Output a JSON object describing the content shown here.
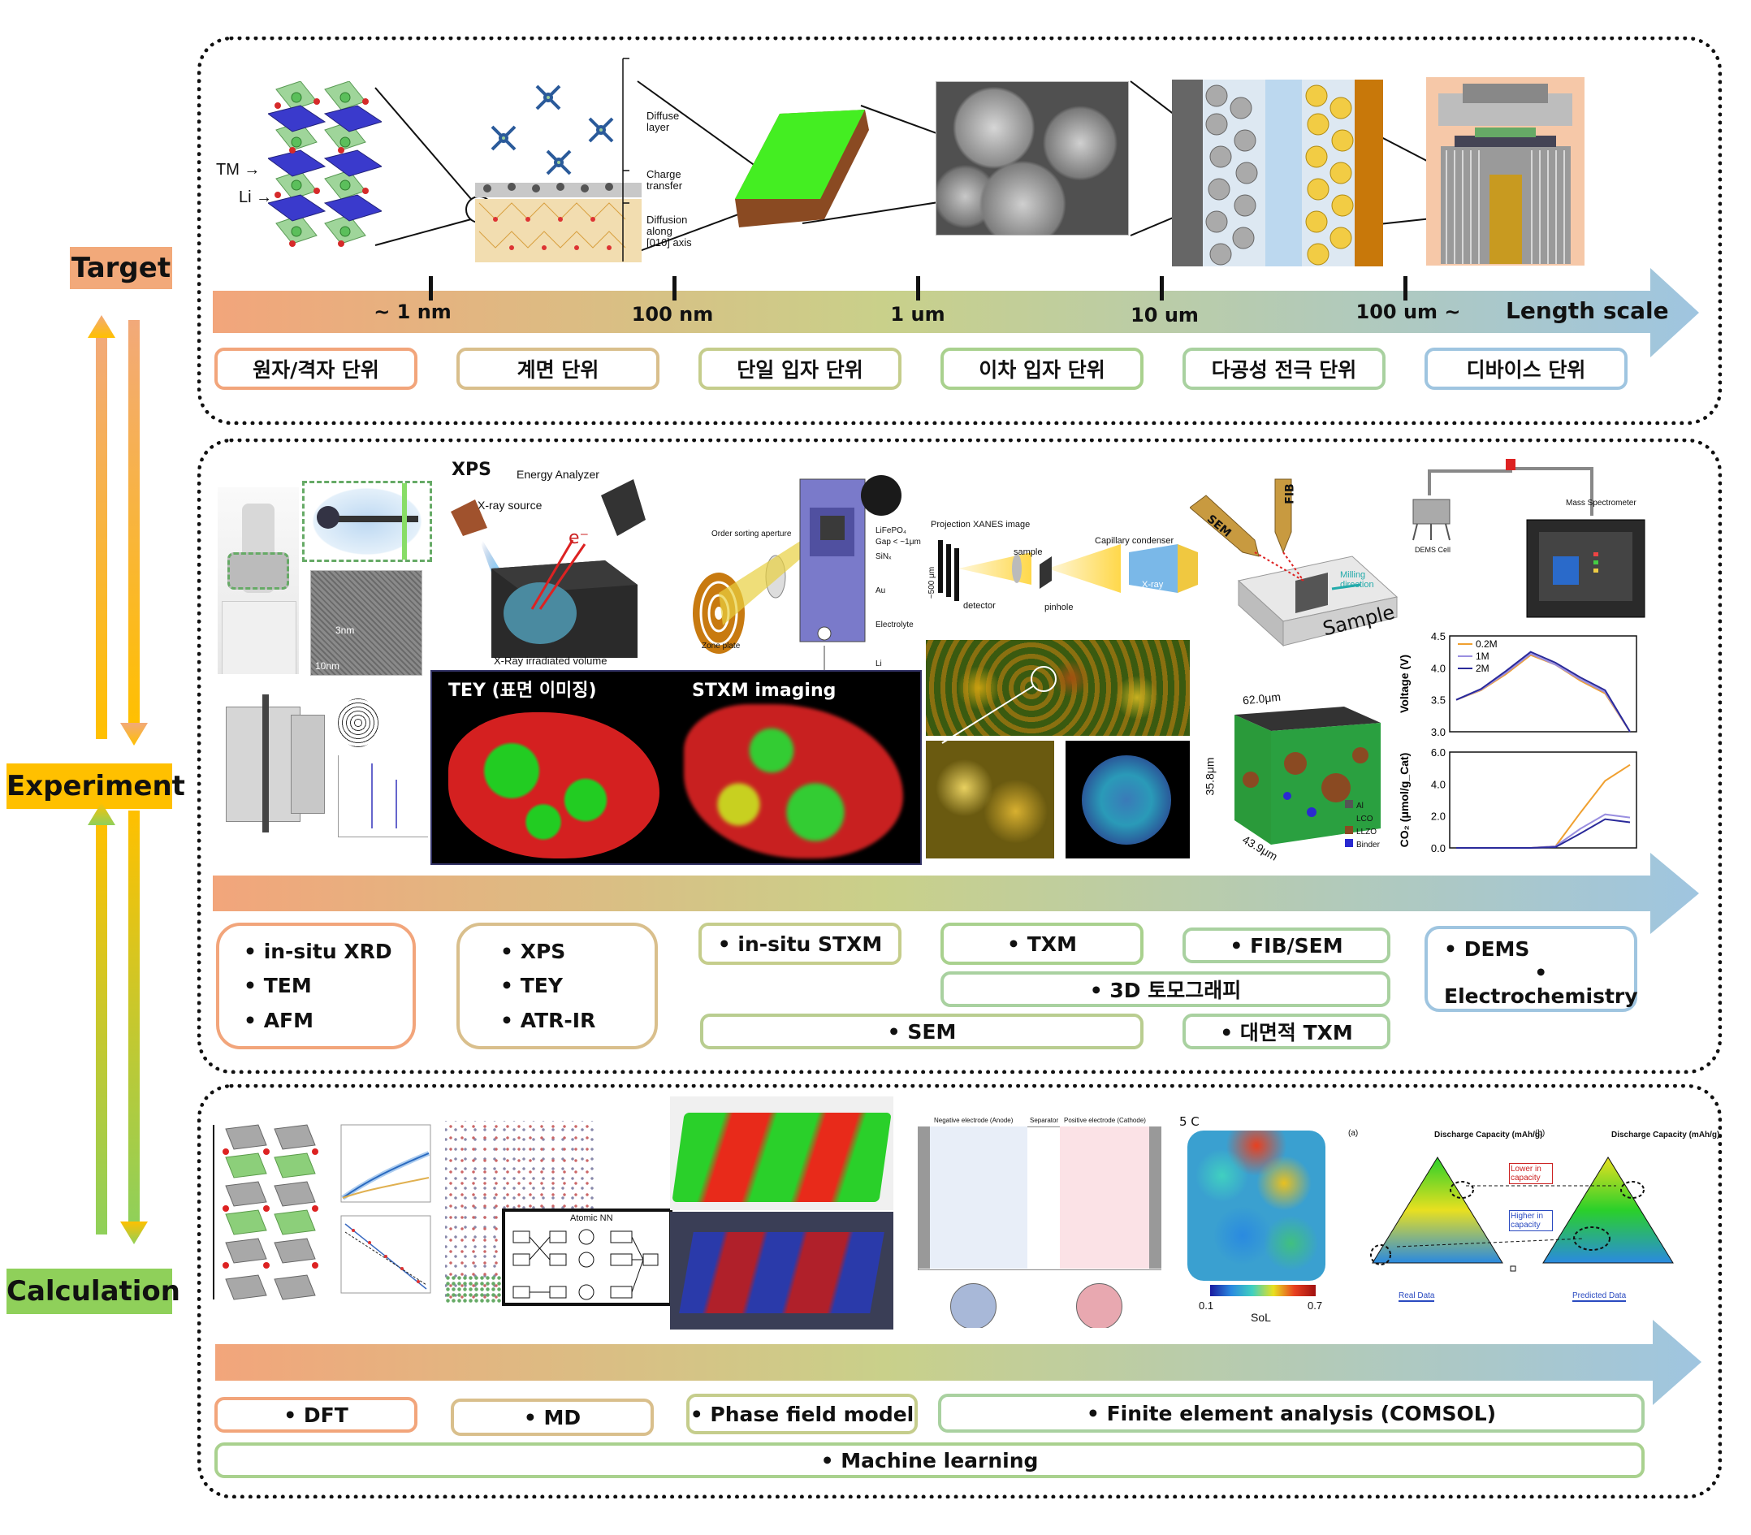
{
  "sections": {
    "target": "Target",
    "experiment": "Experiment",
    "calculation": "Calculation"
  },
  "colors": {
    "target_label": "#f2a97a",
    "experiment_label": "#ffc000",
    "calculation_label": "#8fd05a",
    "orange": "#f2a57b",
    "tan": "#d9bf8c",
    "green": "#a9d18e",
    "light_blue": "#9fc5e0"
  },
  "target": {
    "length_ticks": [
      "~ 1 nm",
      "100  nm",
      "1 um",
      "10 um",
      "100 um ~"
    ],
    "length_axis_label": "Length scale",
    "scale_boxes": [
      "원자/격자 단위",
      "계면 단위",
      "단일 입자 단위",
      "이차 입자 단위",
      "다공성 전극 단위",
      "디바이스 단위"
    ],
    "annotations": {
      "tm": "TM →",
      "li": "Li →",
      "diffuse_layer": "Diffuse layer",
      "charge_transfer": "Charge transfer",
      "diffusion": "Diffusion along [010] axis"
    }
  },
  "experiment": {
    "tech_boxes": {
      "box1": [
        "in-situ XRD",
        "TEM",
        "AFM"
      ],
      "box2": [
        "XPS",
        "TEY",
        "ATR-IR"
      ],
      "box3": "in-situ STXM",
      "box4": "TXM",
      "box5": "FIB/SEM",
      "box6": [
        "DEMS",
        "Electrochemistry"
      ],
      "box7": "3D 토모그래피",
      "box8": "SEM",
      "box9": "대면적 TXM"
    },
    "annotations": {
      "xps": "XPS",
      "energy_analyzer": "Energy Analyzer",
      "xray_source": "X-ray source",
      "electron": "e⁻",
      "irradiated": "X-Ray irradiated volume",
      "tey_title": "TEY (표면 이미징)",
      "stxm_title": "STXM imaging",
      "order_sorting": "Order sorting aperture",
      "zone_plate": "Zone plate",
      "lifepo4": "LiFePO₄",
      "gap": "Gap < ~1μm",
      "sin": "SiNₓ",
      "au": "Au",
      "electrolyte": "Electrolyte",
      "li": "Li",
      "projection": "Projection XANES image",
      "sample": "sample",
      "capillary": "Capillary condenser",
      "detector": "detector",
      "pinhole": "pinhole",
      "xray": "X-ray",
      "size500": "~500 μm",
      "fib": "FIB",
      "sem": "SEM",
      "milling": "Milling direction",
      "sample_big": "Sample",
      "mass_spec": "Mass Spectrometer",
      "dems_cell": "DEMS Cell",
      "dim1": "62.0μm",
      "dim2": "35.8μm",
      "dim3": "43.9μm",
      "legend3d": [
        "Al",
        "LCO",
        "LLZO",
        "Binder"
      ],
      "tem_scale1": "3nm",
      "tem_scale2": "10nm"
    }
  },
  "chart_data": [
    {
      "type": "line",
      "ylabel": "Voltage (V)",
      "ylim": [
        3.0,
        4.5
      ],
      "yticks": [
        "4.5",
        "4.0",
        "3.5",
        "3.0"
      ],
      "series": [
        {
          "name": "0.2M",
          "color": "#f0a030",
          "values": [
            3.5,
            3.65,
            3.9,
            4.2,
            4.05,
            3.8,
            3.6,
            3.0
          ]
        },
        {
          "name": "1M",
          "color": "#9a8fe0",
          "values": [
            3.5,
            3.66,
            3.92,
            4.22,
            4.05,
            3.82,
            3.62,
            3.0
          ]
        },
        {
          "name": "2M",
          "color": "#2a2a9a",
          "values": [
            3.5,
            3.67,
            3.95,
            4.25,
            4.08,
            3.85,
            3.65,
            3.0
          ]
        }
      ]
    },
    {
      "type": "line",
      "ylabel": "CO₂ (μmol/g_Cat)",
      "ylim": [
        0.0,
        6.0
      ],
      "yticks": [
        "6.0",
        "4.0",
        "2.0",
        "0.0"
      ],
      "series": [
        {
          "name": "0.2M",
          "color": "#f0a030",
          "values": [
            0,
            0,
            0,
            0,
            0.1,
            2.2,
            4.2,
            5.2
          ]
        },
        {
          "name": "1M",
          "color": "#9a8fe0",
          "values": [
            0,
            0,
            0,
            0,
            0.1,
            1.2,
            2.1,
            1.9
          ]
        },
        {
          "name": "2M",
          "color": "#2a2a9a",
          "values": [
            0,
            0,
            0,
            0,
            0.05,
            0.9,
            1.8,
            1.6
          ]
        }
      ]
    }
  ],
  "calculation": {
    "method_boxes": [
      "DFT",
      "MD",
      "Phase field model",
      "Finite element analysis (COMSOL)",
      "Machine learning"
    ],
    "annotations": {
      "atomic_nn": "Atomic NN",
      "c5": "5 C",
      "sol": "SoL",
      "sol_min": "0.1",
      "sol_max": "0.7",
      "neg_electrode": "Negative electrode (Anode)",
      "separator": "Separator",
      "pos_electrode": "Positive electrode (Cathode)",
      "discharge_a": "Discharge Capacity (mAh/g)",
      "discharge_b": "Discharge Capacity (mAh/g)",
      "lower": "Lower in capacity",
      "higher": "Higher in capacity",
      "real": "Real Data",
      "predicted": "Predicted Data",
      "pa": "(a)",
      "pb": "(b)"
    }
  }
}
